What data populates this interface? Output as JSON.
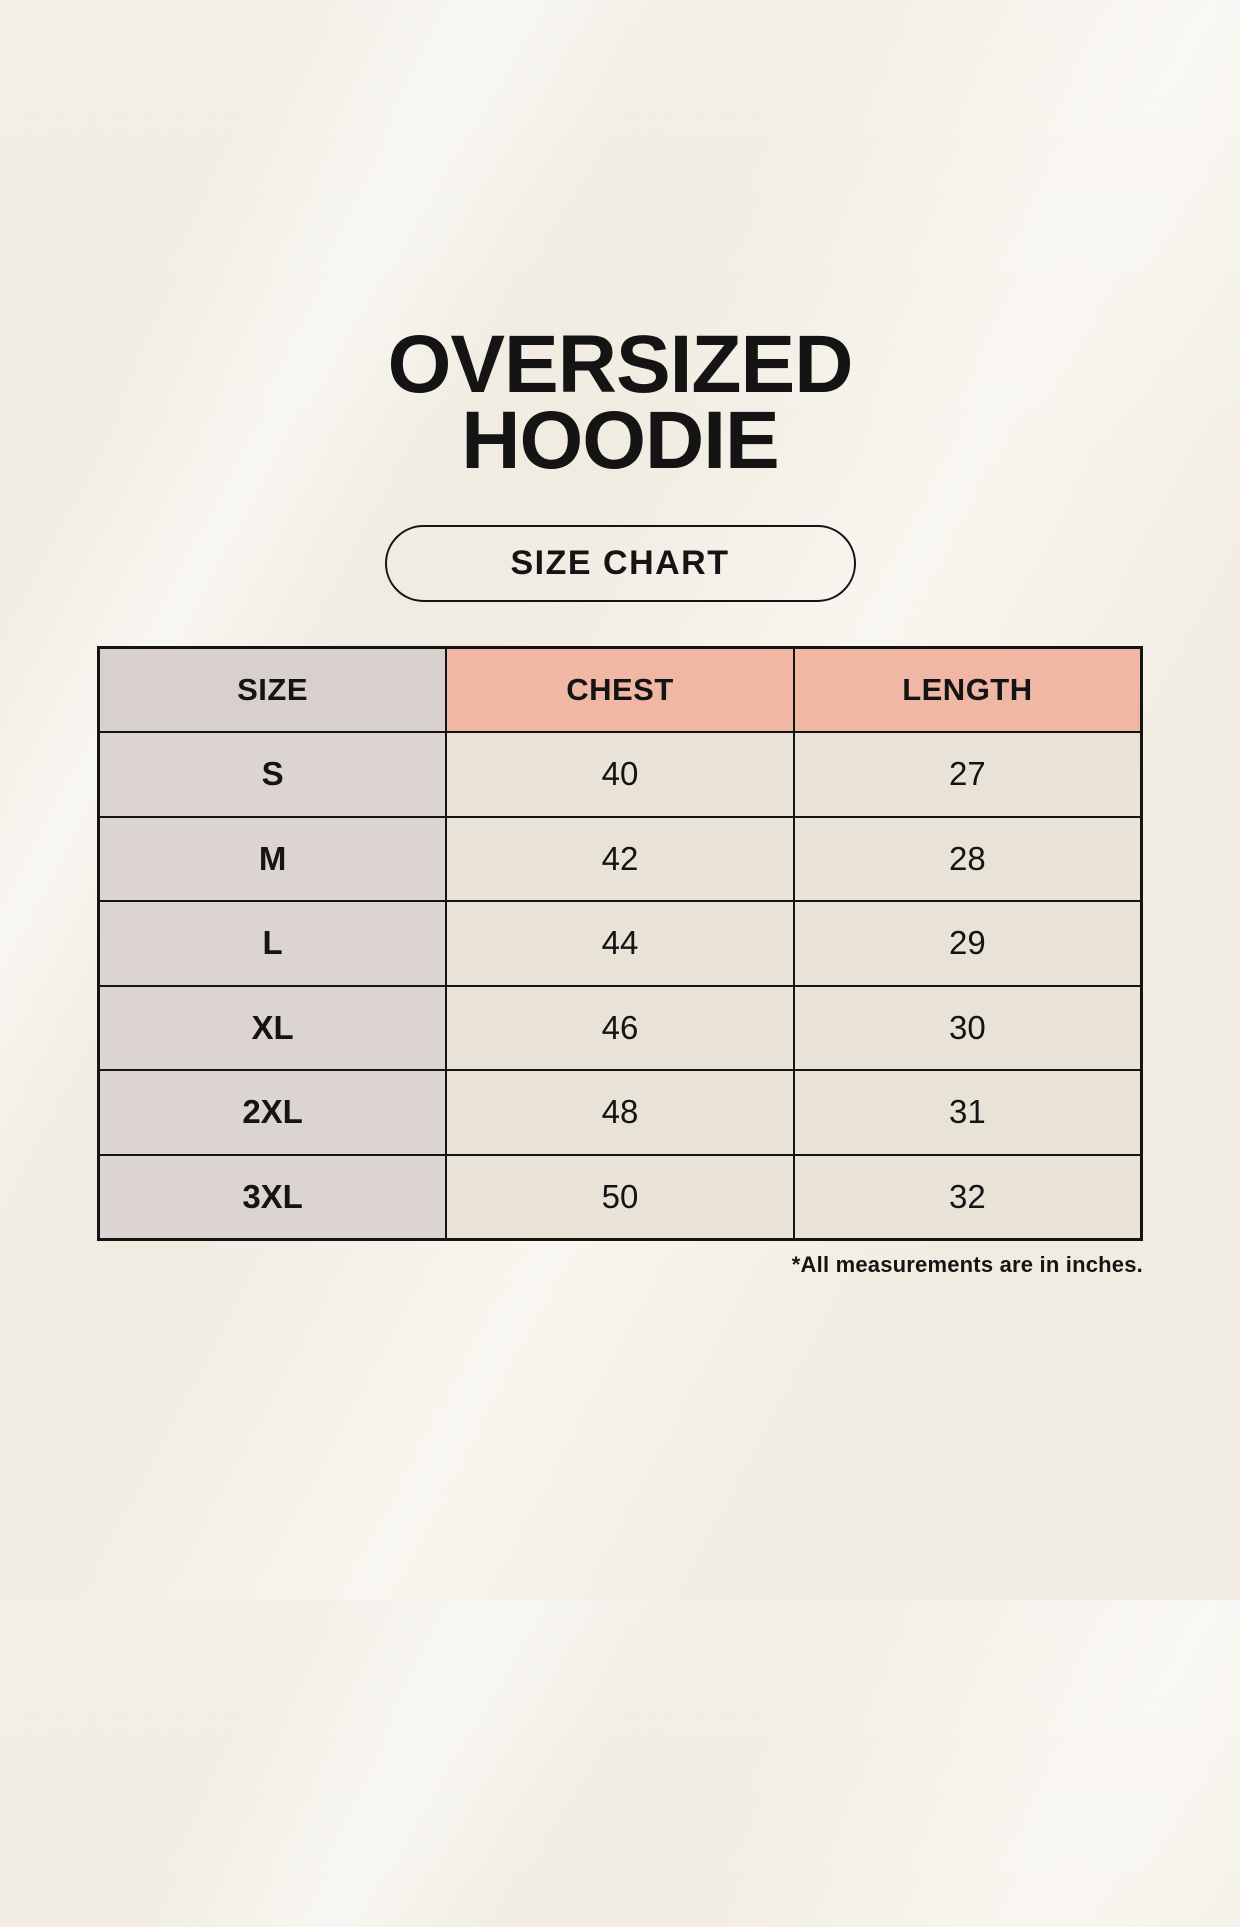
{
  "page": {
    "title_line1": "OVERSIZED",
    "title_line2": "HOODIE",
    "badge_label": "SIZE CHART",
    "footnote": "*All measurements are in inches."
  },
  "chart_data": {
    "type": "table",
    "title": "OVERSIZED HOODIE",
    "subtitle": "SIZE CHART",
    "columns": [
      "SIZE",
      "CHEST",
      "LENGTH"
    ],
    "rows": [
      [
        "S",
        "40",
        "27"
      ],
      [
        "M",
        "42",
        "28"
      ],
      [
        "L",
        "44",
        "29"
      ],
      [
        "XL",
        "46",
        "30"
      ],
      [
        "2XL",
        "48",
        "31"
      ],
      [
        "3XL",
        "50",
        "32"
      ]
    ],
    "units": "inches",
    "note": "*All measurements are in inches."
  },
  "colors": {
    "background": "#f5f1e8",
    "size_column_header": "#d7d0cd",
    "size_column_body": "#dbd4d1",
    "accent_header": "#f0b8a4",
    "data_cell": "#e9e2d7",
    "border": "#141414",
    "text": "#141414"
  }
}
